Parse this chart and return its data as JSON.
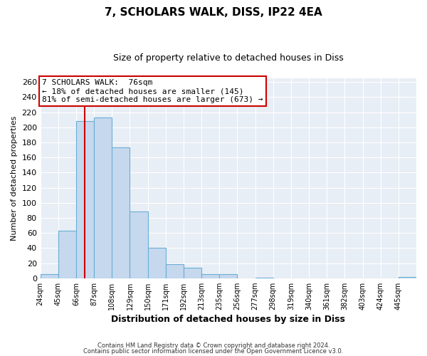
{
  "title": "7, SCHOLARS WALK, DISS, IP22 4EA",
  "subtitle": "Size of property relative to detached houses in Diss",
  "xlabel": "Distribution of detached houses by size in Diss",
  "ylabel": "Number of detached properties",
  "bar_labels": [
    "24sqm",
    "45sqm",
    "66sqm",
    "87sqm",
    "108sqm",
    "129sqm",
    "150sqm",
    "171sqm",
    "192sqm",
    "213sqm",
    "235sqm",
    "256sqm",
    "277sqm",
    "298sqm",
    "319sqm",
    "340sqm",
    "361sqm",
    "382sqm",
    "403sqm",
    "424sqm",
    "445sqm"
  ],
  "bar_values": [
    5,
    63,
    208,
    213,
    173,
    88,
    40,
    19,
    14,
    5,
    5,
    0,
    1,
    0,
    0,
    0,
    0,
    0,
    0,
    0,
    2
  ],
  "bar_color": "#c5d8ed",
  "bar_edgecolor": "#6aaed6",
  "vline_x": 76,
  "vline_color": "#cc0000",
  "annotation_title": "7 SCHOLARS WALK:  76sqm",
  "annotation_line1": "← 18% of detached houses are smaller (145)",
  "annotation_line2": "81% of semi-detached houses are larger (673) →",
  "annotation_box_edgecolor": "#cc0000",
  "xlim_start": 24,
  "bin_width": 21,
  "ylim": [
    0,
    265
  ],
  "yticks": [
    0,
    20,
    40,
    60,
    80,
    100,
    120,
    140,
    160,
    180,
    200,
    220,
    240,
    260
  ],
  "footer1": "Contains HM Land Registry data © Crown copyright and database right 2024.",
  "footer2": "Contains public sector information licensed under the Open Government Licence v3.0.",
  "bg_color": "#ffffff",
  "plot_bg_color": "#e8eef5",
  "grid_color": "#ffffff",
  "title_fontsize": 11,
  "subtitle_fontsize": 9
}
